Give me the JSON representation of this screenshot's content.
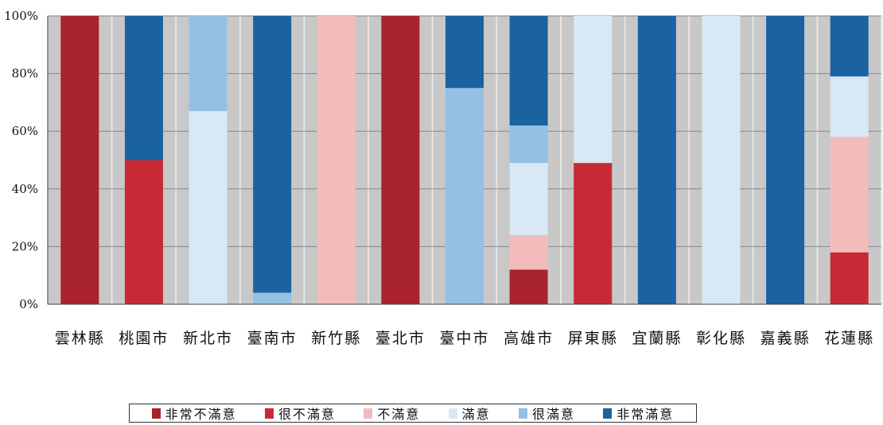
{
  "chart_data": {
    "type": "bar",
    "stacked": true,
    "percent": true,
    "ylim": [
      0,
      100
    ],
    "yticks": [
      "0%",
      "20%",
      "40%",
      "60%",
      "80%",
      "100%"
    ],
    "categories": [
      "雲林縣",
      "桃園市",
      "新北市",
      "臺南市",
      "新竹縣",
      "臺北市",
      "臺中市",
      "高雄市",
      "屏東縣",
      "宜蘭縣",
      "彰化縣",
      "嘉義縣",
      "花蓮縣"
    ],
    "series": [
      {
        "name": "非常不滿意",
        "color": "#a8232c",
        "values": [
          100,
          0,
          0,
          0,
          0,
          100,
          0,
          12,
          0,
          0,
          0,
          0,
          0
        ]
      },
      {
        "name": "很不滿意",
        "color": "#c62a35",
        "values": [
          0,
          50,
          0,
          0,
          0,
          0,
          0,
          0,
          49,
          0,
          0,
          0,
          18
        ]
      },
      {
        "name": "不滿意",
        "color": "#f2bcbc",
        "values": [
          0,
          0,
          0,
          0,
          100,
          0,
          0,
          12,
          0,
          0,
          0,
          0,
          40
        ]
      },
      {
        "name": "滿意",
        "color": "#d8e8f4",
        "values": [
          0,
          0,
          67,
          0,
          0,
          0,
          0,
          25,
          51,
          0,
          100,
          0,
          21
        ]
      },
      {
        "name": "很滿意",
        "color": "#94c0e3",
        "values": [
          0,
          0,
          33,
          4,
          0,
          0,
          75,
          13,
          0,
          0,
          0,
          0,
          0
        ]
      },
      {
        "name": "非常滿意",
        "color": "#1a62a0",
        "values": [
          0,
          50,
          0,
          96,
          0,
          0,
          25,
          38,
          0,
          100,
          0,
          100,
          21
        ]
      }
    ],
    "grid": true,
    "legend_position": "bottom"
  }
}
